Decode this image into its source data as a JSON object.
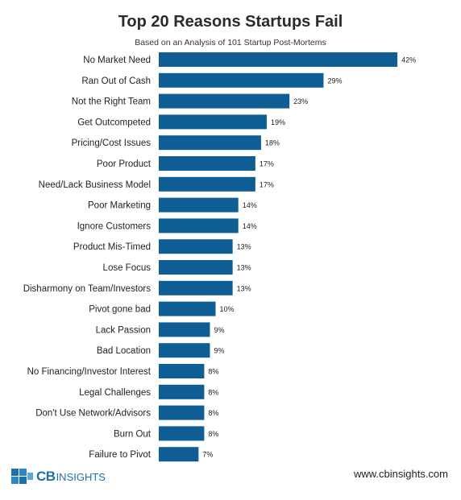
{
  "chart_data": {
    "type": "bar",
    "orientation": "horizontal",
    "title": "Top 20 Reasons Startups Fail",
    "subtitle": "Based on an Analysis of 101 Startup Post-Mortems",
    "categories": [
      "No Market Need",
      "Ran Out of Cash",
      "Not the Right Team",
      "Get Outcompeted",
      "Pricing/Cost Issues",
      "Poor Product",
      "Need/Lack Business Model",
      "Poor Marketing",
      "Ignore Customers",
      "Product Mis-Timed",
      "Lose Focus",
      "Disharmony on Team/Investors",
      "Pivot gone bad",
      "Lack Passion",
      "Bad Location",
      "No Financing/Investor Interest",
      "Legal Challenges",
      "Don't Use Network/Advisors",
      "Burn Out",
      "Failure to Pivot"
    ],
    "values": [
      42,
      29,
      23,
      19,
      18,
      17,
      17,
      14,
      14,
      13,
      13,
      13,
      10,
      9,
      9,
      8,
      8,
      8,
      8,
      7
    ],
    "value_labels": [
      "42%",
      "29%",
      "23%",
      "19%",
      "18%",
      "17%",
      "17%",
      "14%",
      "14%",
      "13%",
      "13%",
      "13%",
      "10%",
      "9%",
      "9%",
      "8%",
      "8%",
      "8%",
      "8%",
      "7%"
    ],
    "unit": "%",
    "grid": false,
    "legend": "none",
    "bar_color": "#0e5d94"
  },
  "footer": {
    "logo_cb": "CB",
    "logo_insights": "INSIGHTS",
    "url": "www.cbinsights.com"
  }
}
